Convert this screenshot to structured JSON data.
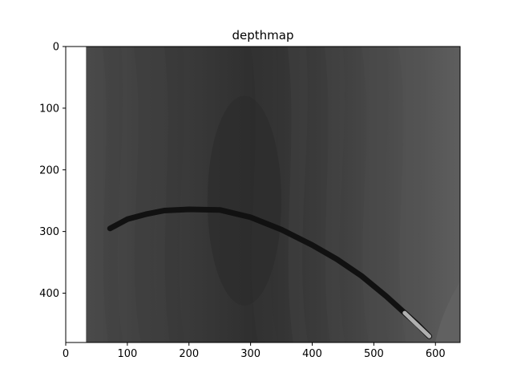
{
  "chart_data": {
    "type": "heatmap",
    "title": "depthmap",
    "xlabel": "",
    "ylabel": "",
    "xlim": [
      0,
      640
    ],
    "ylim": [
      480,
      0
    ],
    "x_ticks": [
      0,
      100,
      200,
      300,
      400,
      500,
      600
    ],
    "y_ticks": [
      0,
      100,
      200,
      300,
      400
    ],
    "colormap": "gray",
    "grid": false,
    "image_extent_x": [
      33,
      640
    ],
    "image_extent_y": [
      0,
      480
    ],
    "colors": {
      "background": "#ffffff",
      "dark": "#2e2e2e",
      "mid": "#464646",
      "light": "#5c5c5c",
      "edge_light": "#616161",
      "stroke": "#111111",
      "stroke_tip": "#b0b0b0"
    },
    "dark_stroke": {
      "x": [
        72,
        100,
        130,
        160,
        200,
        250,
        300,
        350,
        400,
        440,
        480,
        520,
        550,
        570,
        590
      ],
      "y": [
        295,
        280,
        272,
        266,
        264,
        265,
        277,
        297,
        322,
        345,
        372,
        405,
        432,
        450,
        470
      ]
    }
  }
}
